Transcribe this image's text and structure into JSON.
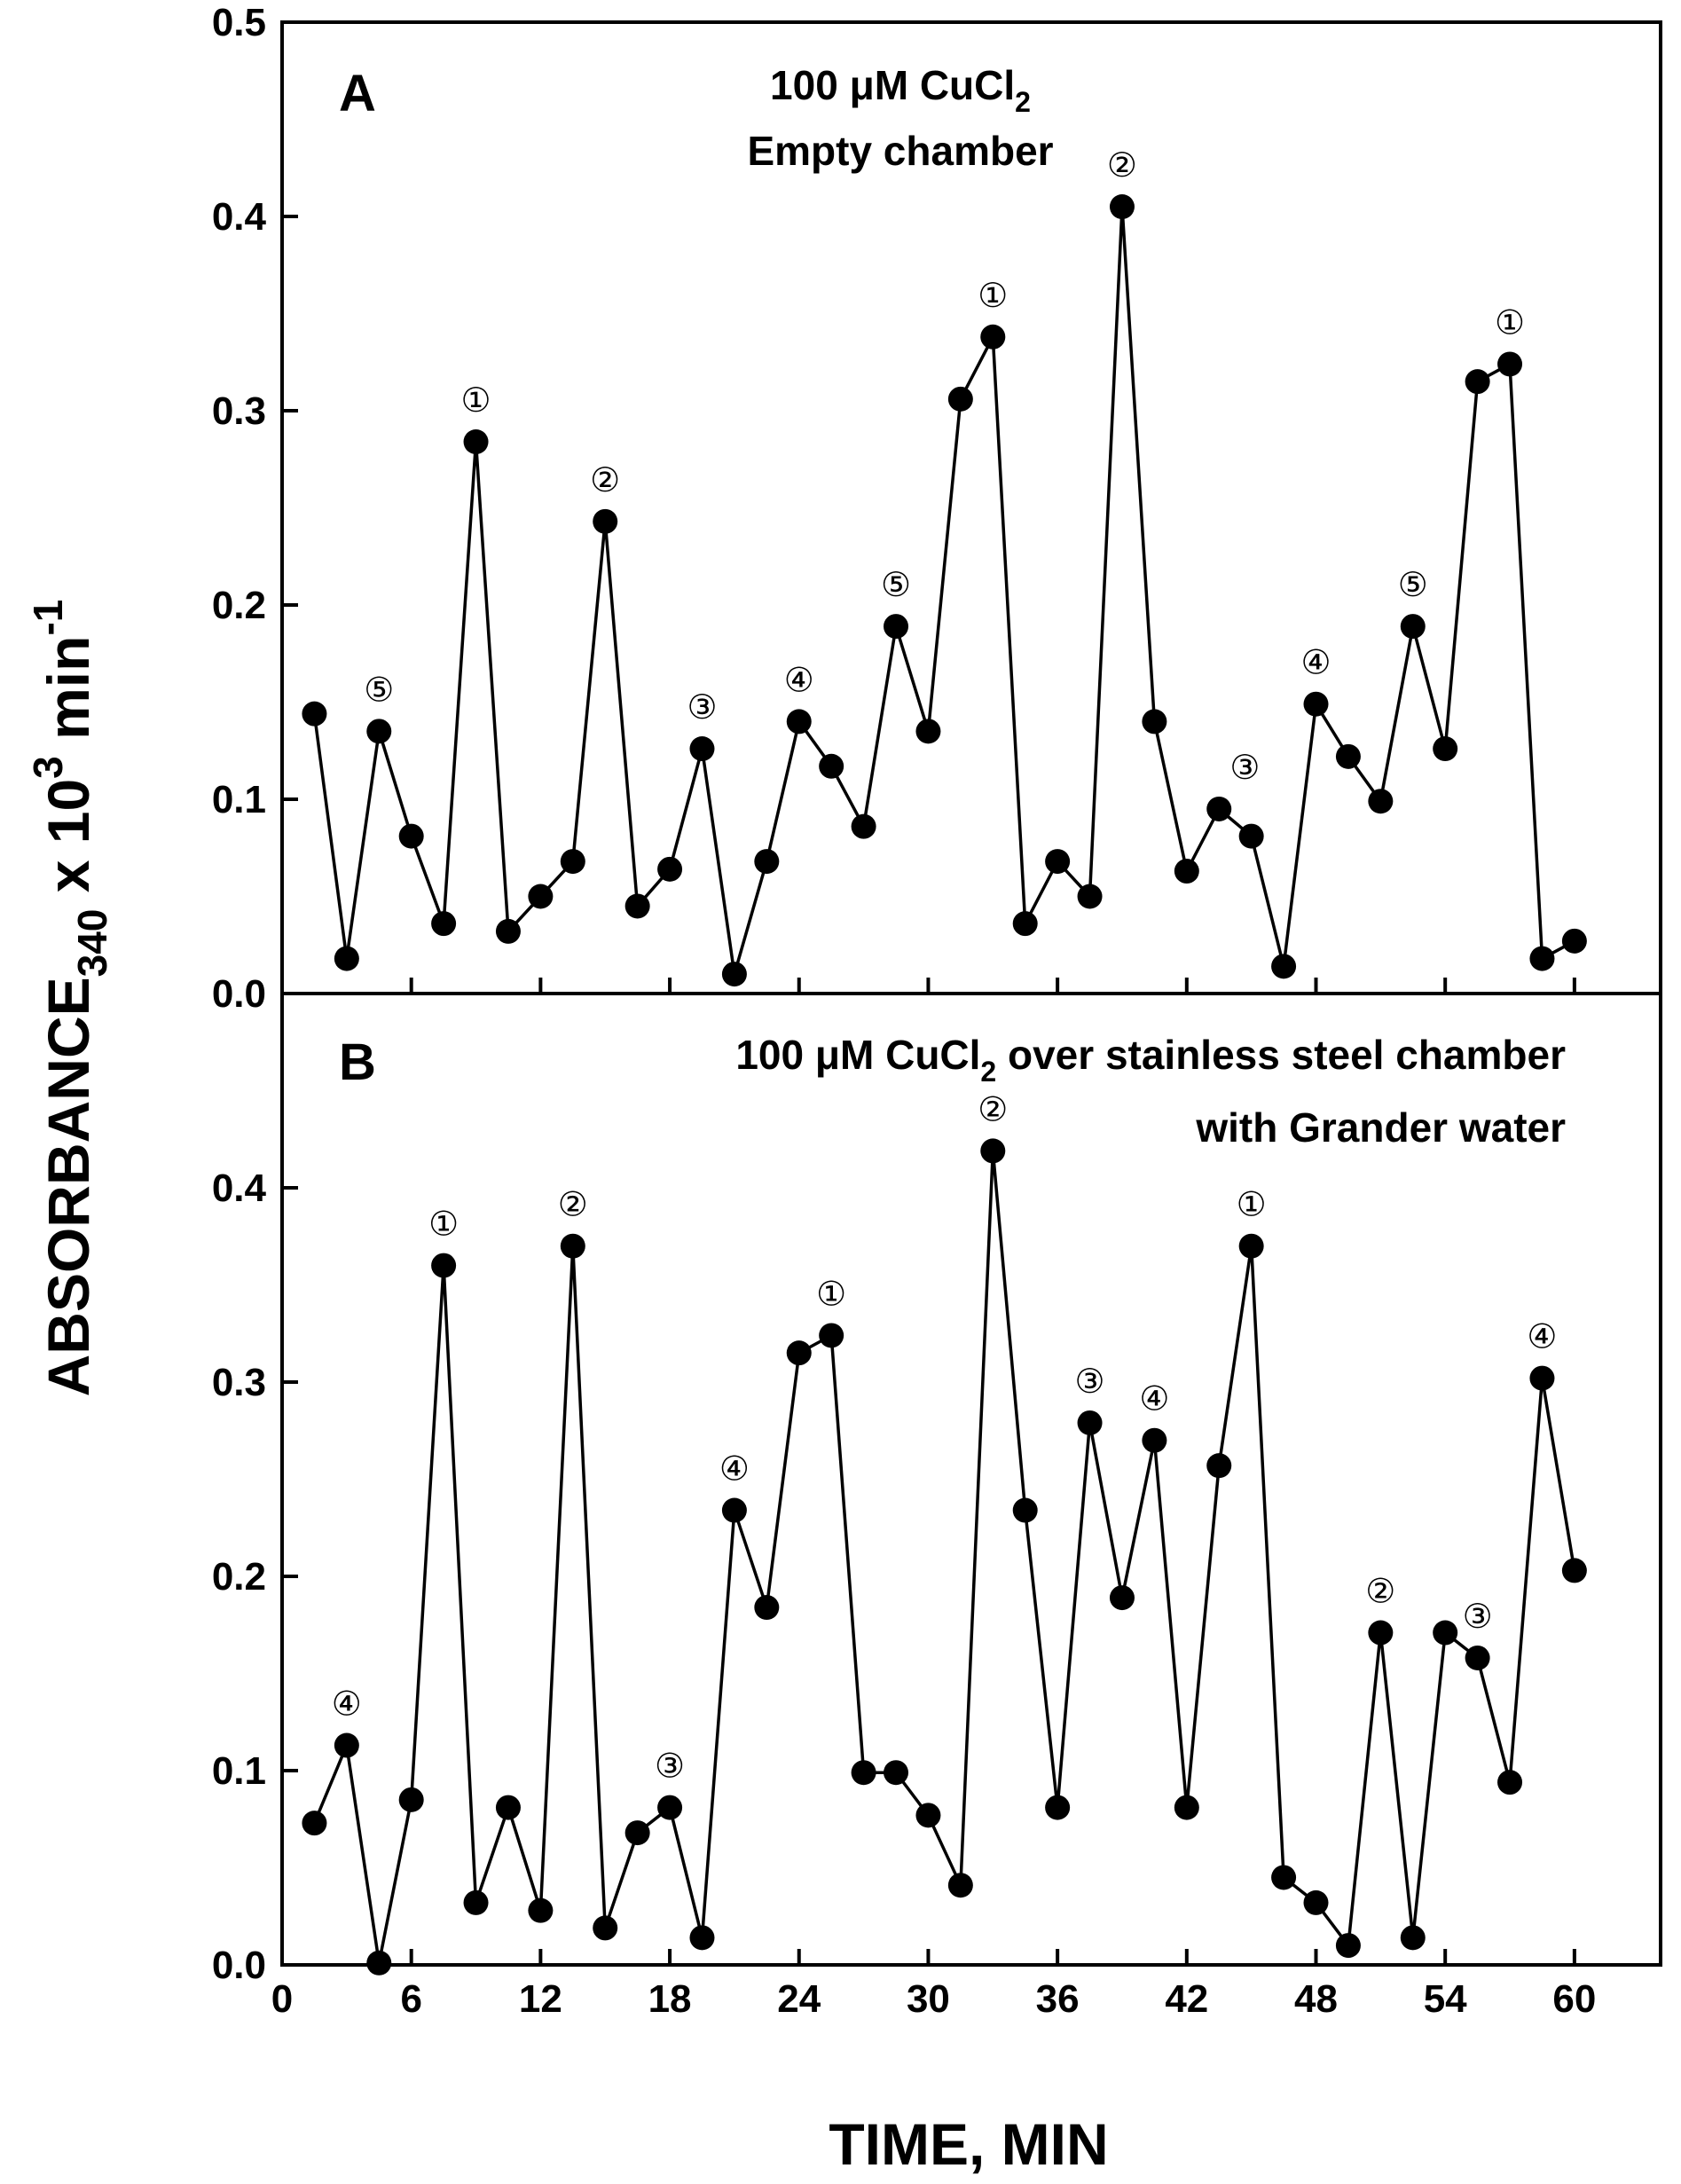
{
  "chart_data": {
    "type": "line",
    "shared_x_axis": {
      "label": "TIME, MIN",
      "range": [
        0,
        64
      ],
      "ticks": [
        0,
        6,
        12,
        18,
        24,
        30,
        36,
        42,
        48,
        54,
        60
      ],
      "tick_labels": [
        "0",
        "6",
        "12",
        "18",
        "24",
        "30",
        "36",
        "42",
        "48",
        "54",
        "60"
      ]
    },
    "shared_y_label": {
      "main": "ABSORBANCE",
      "sub": "340",
      "mid": " x 10",
      "sup": "3",
      "unit": " min",
      "unit_sup": "-1"
    },
    "panels": [
      {
        "letter": "A",
        "title_lines": [
          {
            "main": "100 μM CuCl",
            "sub": "2",
            "tail": ""
          },
          {
            "main": "Empty chamber",
            "sub": "",
            "tail": ""
          }
        ],
        "ylim": [
          0.0,
          0.5
        ],
        "yticks": [
          0.0,
          0.1,
          0.2,
          0.3,
          0.4,
          0.5
        ],
        "ytick_labels": [
          "0.0",
          "0.1",
          "0.2",
          "0.3",
          "0.4",
          "0.5"
        ],
        "series": [
          {
            "x": [
              1.5,
              3,
              4.5,
              6,
              7.5,
              9,
              10.5,
              12,
              13.5,
              15,
              16.5,
              18,
              19.5,
              21,
              22.5,
              24,
              25.5,
              27,
              28.5,
              30,
              31.5,
              33,
              34.5,
              36,
              37.5,
              39,
              40.5,
              42,
              43.5,
              45,
              46.5,
              48,
              49.5,
              51,
              52.5,
              54,
              55.5,
              57,
              58.5,
              60
            ],
            "y": [
              0.144,
              0.018,
              0.135,
              0.081,
              0.036,
              0.284,
              0.032,
              0.05,
              0.068,
              0.243,
              0.045,
              0.064,
              0.126,
              0.01,
              0.068,
              0.14,
              0.117,
              0.086,
              0.189,
              0.135,
              0.306,
              0.338,
              0.036,
              0.068,
              0.05,
              0.405,
              0.14,
              0.063,
              0.095,
              0.081,
              0.014,
              0.149,
              0.122,
              0.099,
              0.189,
              0.126,
              0.315,
              0.324,
              0.018,
              0.027
            ]
          }
        ],
        "annotations": [
          {
            "text": "⑤",
            "x": 4.5,
            "y": 0.135
          },
          {
            "text": "①",
            "x": 9,
            "y": 0.284
          },
          {
            "text": "②",
            "x": 15,
            "y": 0.243
          },
          {
            "text": "③",
            "x": 19.5,
            "y": 0.126
          },
          {
            "text": "④",
            "x": 24,
            "y": 0.14
          },
          {
            "text": "⑤",
            "x": 28.5,
            "y": 0.189
          },
          {
            "text": "①",
            "x": 33,
            "y": 0.338
          },
          {
            "text": "②",
            "x": 39,
            "y": 0.405
          },
          {
            "text": "③",
            "x": 44.7,
            "y": 0.095
          },
          {
            "text": "④",
            "x": 48,
            "y": 0.149
          },
          {
            "text": "⑤",
            "x": 52.5,
            "y": 0.189
          },
          {
            "text": "①",
            "x": 57,
            "y": 0.324
          }
        ]
      },
      {
        "letter": "B",
        "title_lines": [
          {
            "main": "100 μM CuCl",
            "sub": "2",
            "tail": " over stainless steel chamber"
          },
          {
            "main": "with Grander water",
            "sub": "",
            "tail": ""
          }
        ],
        "ylim": [
          0.0,
          0.5
        ],
        "yticks": [
          0.0,
          0.1,
          0.2,
          0.3,
          0.4
        ],
        "ytick_labels": [
          "0.0",
          "0.1",
          "0.2",
          "0.3",
          "0.4"
        ],
        "series": [
          {
            "x": [
              1.5,
              3,
              4.5,
              6,
              7.5,
              9,
              10.5,
              12,
              13.5,
              15,
              16.5,
              18,
              19.5,
              21,
              22.5,
              24,
              25.5,
              27,
              28.5,
              30,
              31.5,
              33,
              34.5,
              36,
              37.5,
              39,
              40.5,
              42,
              43.5,
              45,
              46.5,
              48,
              49.5,
              51,
              52.5,
              54,
              55.5,
              57,
              58.5,
              60
            ],
            "y": [
              0.073,
              0.113,
              0.001,
              0.085,
              0.36,
              0.032,
              0.081,
              0.028,
              0.37,
              0.019,
              0.068,
              0.081,
              0.014,
              0.234,
              0.184,
              0.315,
              0.324,
              0.099,
              0.099,
              0.077,
              0.041,
              0.419,
              0.234,
              0.081,
              0.279,
              0.189,
              0.27,
              0.081,
              0.257,
              0.37,
              0.045,
              0.032,
              0.01,
              0.171,
              0.014,
              0.171,
              0.158,
              0.094,
              0.302,
              0.203
            ]
          }
        ],
        "annotations": [
          {
            "text": "④",
            "x": 3,
            "y": 0.113
          },
          {
            "text": "①",
            "x": 7.5,
            "y": 0.36
          },
          {
            "text": "②",
            "x": 13.5,
            "y": 0.37
          },
          {
            "text": "③",
            "x": 18,
            "y": 0.081
          },
          {
            "text": "④",
            "x": 21,
            "y": 0.234
          },
          {
            "text": "①",
            "x": 25.5,
            "y": 0.324
          },
          {
            "text": "②",
            "x": 33,
            "y": 0.419
          },
          {
            "text": "③",
            "x": 37.5,
            "y": 0.279
          },
          {
            "text": "④",
            "x": 40.5,
            "y": 0.27
          },
          {
            "text": "①",
            "x": 45,
            "y": 0.37
          },
          {
            "text": "②",
            "x": 51,
            "y": 0.171
          },
          {
            "text": "③",
            "x": 55.5,
            "y": 0.158
          },
          {
            "text": "④",
            "x": 58.5,
            "y": 0.302
          }
        ]
      }
    ],
    "grid": false,
    "legend": "none",
    "colors": {
      "line": "#000000",
      "marker": "#000000",
      "background": "#ffffff"
    }
  }
}
